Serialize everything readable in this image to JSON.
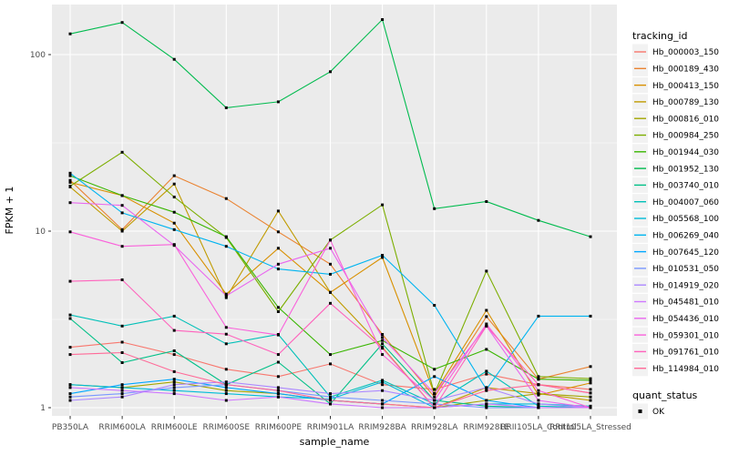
{
  "chart_data": {
    "type": "line",
    "title": "",
    "xlabel": "sample_name",
    "ylabel": "FPKM + 1",
    "y_scale": "log10",
    "y_ticks": [
      1,
      10,
      100
    ],
    "y_minor_ticks": [
      3.162,
      31.62
    ],
    "ylim": [
      0.93,
      170
    ],
    "grid": "on",
    "panel_background": "#EBEBEB",
    "gridline_color": "#FFFFFF",
    "tick_label_color": "#4D4D4D",
    "axis_title_color": "#000000",
    "point_shape": "filled-square",
    "point_color": "#000000",
    "legend_position": "right",
    "legend_title": "tracking_id",
    "legend2_title": "quant_status",
    "legend2_items": [
      {
        "label": "OK",
        "symbol": "black-square"
      }
    ],
    "categories": [
      "PB350LA",
      "RRIM600LA",
      "RRIM600LE",
      "RRIM600SE",
      "RRIM600PE",
      "RRIM901LA",
      "RRIM928BA",
      "RRIM928LA",
      "RRIM928LE",
      "RRII105LA_Control",
      "RRII105LA_Stressed"
    ],
    "series": [
      {
        "name": "Hb_000003_150",
        "color": "#F8766D",
        "values": [
          2.2,
          2.35,
          2.0,
          1.65,
          1.5,
          1.77,
          1.35,
          1.27,
          1.55,
          1.35,
          1.27
        ]
      },
      {
        "name": "Hb_000189_430",
        "color": "#EA8331",
        "values": [
          19.4,
          10.2,
          20.6,
          15.3,
          9.9,
          6.5,
          2.6,
          1.15,
          3.28,
          1.45,
          1.71
        ]
      },
      {
        "name": "Hb_000413_150",
        "color": "#D89000",
        "values": [
          18.9,
          15.9,
          11.1,
          4.4,
          8.0,
          4.5,
          7.1,
          1.2,
          3.56,
          1.18,
          1.38
        ]
      },
      {
        "name": "Hb_000789_130",
        "color": "#C09B00",
        "values": [
          17.8,
          10.0,
          18.5,
          4.2,
          13.0,
          4.5,
          2.2,
          1.0,
          1.3,
          1.2,
          1.1
        ]
      },
      {
        "name": "Hb_000816_010",
        "color": "#A3A500",
        "values": [
          1.35,
          1.3,
          1.4,
          1.25,
          1.2,
          1.1,
          1.05,
          1.0,
          1.1,
          1.2,
          1.15
        ]
      },
      {
        "name": "Hb_000984_250",
        "color": "#7CAE00",
        "values": [
          18.0,
          28.0,
          15.6,
          9.2,
          3.5,
          8.9,
          14.1,
          1.2,
          5.94,
          1.5,
          1.46
        ]
      },
      {
        "name": "Hb_001944_030",
        "color": "#39B600",
        "values": [
          20.6,
          15.9,
          12.8,
          9.3,
          3.7,
          2.0,
          2.4,
          1.65,
          2.14,
          1.45,
          1.43
        ]
      },
      {
        "name": "Hb_001952_130",
        "color": "#00BB4E",
        "values": [
          131,
          152,
          94,
          50,
          54,
          80,
          158,
          13.4,
          14.7,
          11.5,
          9.3
        ]
      },
      {
        "name": "Hb_003740_010",
        "color": "#00C087",
        "values": [
          3.2,
          1.8,
          2.1,
          1.35,
          1.81,
          1.05,
          2.3,
          1.1,
          1.02,
          1.0,
          1.0
        ]
      },
      {
        "name": "Hb_004007_060",
        "color": "#00C0B8",
        "values": [
          3.35,
          2.9,
          3.3,
          2.3,
          2.6,
          1.15,
          1.43,
          1.05,
          1.61,
          1.02,
          1.0
        ]
      },
      {
        "name": "Hb_005568_100",
        "color": "#00BCD8",
        "values": [
          1.35,
          1.3,
          1.25,
          1.2,
          1.15,
          1.12,
          1.4,
          1.0,
          1.05,
          1.05,
          1.02
        ]
      },
      {
        "name": "Hb_006269_040",
        "color": "#00B4F0",
        "values": [
          21.3,
          12.7,
          10.2,
          8.2,
          6.1,
          5.7,
          7.3,
          3.8,
          1.27,
          3.3,
          3.3
        ]
      },
      {
        "name": "Hb_007645_120",
        "color": "#00A7FF",
        "values": [
          1.2,
          1.35,
          1.45,
          1.3,
          1.2,
          1.1,
          1.05,
          1.5,
          1.1,
          1.0,
          1.0
        ]
      },
      {
        "name": "Hb_010531_050",
        "color": "#7997FF",
        "values": [
          1.15,
          1.2,
          1.3,
          1.35,
          1.25,
          1.15,
          1.1,
          1.05,
          1.0,
          1.0,
          1.0
        ]
      },
      {
        "name": "Hb_014919_020",
        "color": "#AC88FF",
        "values": [
          1.1,
          1.15,
          1.35,
          1.4,
          1.3,
          1.2,
          1.25,
          1.1,
          1.3,
          1.05,
          1.0
        ]
      },
      {
        "name": "Hb_045481_010",
        "color": "#CF78FF",
        "values": [
          1.3,
          1.25,
          1.2,
          1.1,
          1.15,
          1.05,
          1.0,
          1.0,
          1.05,
          1.0,
          1.0
        ]
      },
      {
        "name": "Hb_054436_010",
        "color": "#E967EF",
        "values": [
          14.5,
          14.0,
          8.3,
          4.3,
          6.5,
          8.0,
          2.5,
          1.2,
          2.9,
          1.1,
          1.0
        ]
      },
      {
        "name": "Hb_059301_010",
        "color": "#FA61DB",
        "values": [
          9.9,
          8.2,
          8.4,
          2.85,
          2.58,
          8.9,
          2.0,
          1.1,
          2.98,
          1.25,
          1.0
        ]
      },
      {
        "name": "Hb_091761_010",
        "color": "#FF62BC",
        "values": [
          5.2,
          5.3,
          2.74,
          2.61,
          2.0,
          3.9,
          2.17,
          1.0,
          2.9,
          1.35,
          1.21
        ]
      },
      {
        "name": "Hb_114984_010",
        "color": "#FF6A98",
        "values": [
          2.0,
          2.05,
          1.6,
          1.35,
          1.25,
          1.1,
          1.05,
          1.0,
          1.25,
          1.35,
          1.21
        ]
      }
    ]
  }
}
